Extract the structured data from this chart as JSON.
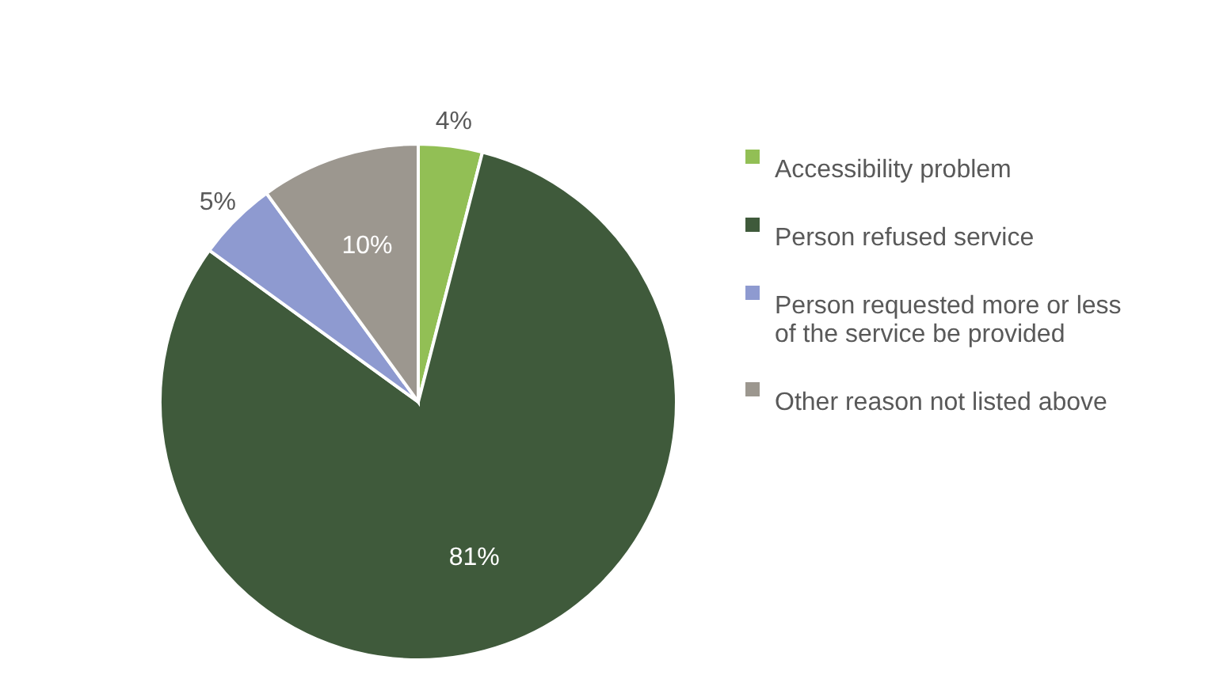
{
  "chart_data": {
    "type": "pie",
    "categories": [
      "Accessibility problem",
      "Person refused service",
      "Person requested more or less of the service be provided",
      "Other reason not listed above"
    ],
    "values": [
      4,
      81,
      5,
      10
    ],
    "colors": [
      "#92bf55",
      "#3f5a3b",
      "#8e9ad0",
      "#9c978f"
    ],
    "value_labels": [
      "4%",
      "81%",
      "5%",
      "10%"
    ],
    "legend": "right"
  }
}
